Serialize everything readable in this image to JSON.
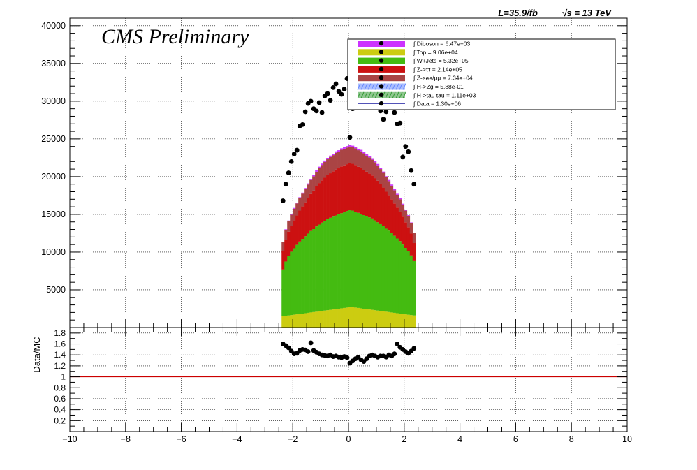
{
  "header": {
    "lumi": "L=35.9/fb",
    "energy": "√s = 13 TeV",
    "experiment": "CMS Preliminary"
  },
  "colors": {
    "diboson": "#cc33ff",
    "top": "#cccc11",
    "wjets": "#44bb11",
    "ztautau": "#cc1111",
    "zll": "#aa4444",
    "hzg": "#6688ff",
    "htautau": "#339933",
    "data": "#000000",
    "ratio_line": "#cc0000"
  },
  "chart_data": [
    {
      "type": "bar",
      "stacked": true,
      "xlim": [
        -10,
        10
      ],
      "ylim": [
        0,
        41000
      ],
      "yticks": [
        5000,
        10000,
        15000,
        20000,
        25000,
        30000,
        35000,
        40000
      ],
      "ytick_labels": [
        "5000",
        "10000",
        "15000",
        "20000",
        "25000",
        "30000",
        "35000",
        "40000"
      ],
      "grid": true,
      "legend_position": "top-right",
      "legend": [
        {
          "label": "∫ Diboson = 6.47e+03",
          "style": "fill",
          "color_key": "diboson"
        },
        {
          "label": "∫ Top = 9.06e+04",
          "style": "fill",
          "color_key": "top"
        },
        {
          "label": "∫ W+Jets = 5.32e+05",
          "style": "fill",
          "color_key": "wjets"
        },
        {
          "label": "∫ Z->ττ = 2.14e+05",
          "style": "fill",
          "color_key": "ztautau"
        },
        {
          "label": "∫ Z->ee/μμ = 7.34e+04",
          "style": "fill",
          "color_key": "zll"
        },
        {
          "label": "∫ H->Zg = 5.88e-01",
          "style": "hatch",
          "color_key": "hzg"
        },
        {
          "label": "∫ H->tau tau = 1.11e+03",
          "style": "hatch",
          "color_key": "htautau"
        },
        {
          "label": "∫ Data = 1.30e+06",
          "style": "line",
          "color_key": "data"
        }
      ],
      "bins": {
        "x_low": -2.4,
        "x_high": 2.4,
        "n": 48,
        "top": [
          1500,
          1550,
          1600,
          1650,
          1700,
          1750,
          1800,
          1850,
          1900,
          1950,
          2000,
          2050,
          2100,
          2150,
          2200,
          2250,
          2300,
          2350,
          2400,
          2450,
          2500,
          2550,
          2600,
          2650,
          2700,
          2700,
          2650,
          2600,
          2550,
          2500,
          2450,
          2400,
          2350,
          2300,
          2250,
          2200,
          2150,
          2100,
          2050,
          2000,
          1950,
          1900,
          1850,
          1800,
          1750,
          1700,
          1650,
          1600
        ],
        "wjets": [
          6200,
          7200,
          7900,
          8400,
          8800,
          9200,
          9600,
          9900,
          10200,
          10500,
          10800,
          11000,
          11300,
          11500,
          11700,
          11900,
          12100,
          12200,
          12300,
          12400,
          12500,
          12600,
          12700,
          12800,
          12900,
          12800,
          12700,
          12600,
          12500,
          12400,
          12300,
          12200,
          12100,
          11900,
          11700,
          11500,
          11300,
          11000,
          10800,
          10500,
          10200,
          9900,
          9600,
          9200,
          8800,
          8400,
          7900,
          7200
        ],
        "ztautau": [
          2400,
          2900,
          3200,
          3400,
          3700,
          3900,
          4100,
          4300,
          4500,
          4700,
          4900,
          5100,
          5300,
          5500,
          5600,
          5700,
          5800,
          5900,
          6000,
          6100,
          6100,
          6200,
          6200,
          6200,
          6200,
          6200,
          6200,
          6100,
          6100,
          6000,
          5900,
          5800,
          5700,
          5600,
          5500,
          5300,
          5100,
          4900,
          4700,
          4500,
          4300,
          4100,
          3900,
          3700,
          3400,
          3200,
          2900,
          2400
        ],
        "zll": [
          1200,
          1300,
          1400,
          1500,
          1550,
          1600,
          1650,
          1700,
          1750,
          1800,
          1850,
          1900,
          1950,
          2000,
          2050,
          2100,
          2100,
          2150,
          2150,
          2200,
          2200,
          2200,
          2200,
          2200,
          2200,
          2200,
          2200,
          2200,
          2200,
          2200,
          2150,
          2150,
          2100,
          2100,
          2050,
          2000,
          1950,
          1900,
          1850,
          1800,
          1750,
          1700,
          1650,
          1600,
          1550,
          1500,
          1400,
          1300
        ],
        "diboson": [
          60,
          70,
          80,
          90,
          100,
          110,
          120,
          130,
          140,
          150,
          160,
          160,
          170,
          170,
          180,
          180,
          190,
          190,
          190,
          200,
          200,
          200,
          200,
          200,
          200,
          200,
          200,
          200,
          200,
          200,
          190,
          190,
          190,
          180,
          180,
          170,
          170,
          160,
          160,
          150,
          140,
          130,
          120,
          110,
          100,
          90,
          80,
          70
        ]
      },
      "data_points": {
        "x": [
          -2.35,
          -2.25,
          -2.15,
          -2.05,
          -1.95,
          -1.85,
          -1.75,
          -1.65,
          -1.55,
          -1.45,
          -1.35,
          -1.25,
          -1.15,
          -1.05,
          -0.95,
          -0.85,
          -0.75,
          -0.65,
          -0.55,
          -0.45,
          -0.35,
          -0.25,
          -0.15,
          -0.05,
          0.05,
          0.15,
          0.25,
          0.35,
          0.45,
          0.55,
          0.65,
          0.75,
          0.85,
          0.95,
          1.05,
          1.15,
          1.25,
          1.35,
          1.45,
          1.55,
          1.65,
          1.75,
          1.85,
          1.95,
          2.05,
          2.15,
          2.25,
          2.35
        ],
        "y": [
          16800,
          19000,
          20500,
          22000,
          23000,
          23500,
          26700,
          26900,
          28600,
          29700,
          30000,
          29000,
          28700,
          29800,
          28500,
          30700,
          31000,
          30100,
          31800,
          32300,
          31300,
          30900,
          31600,
          33000,
          25200,
          29000,
          32600,
          31800,
          30200,
          30700,
          32800,
          29700,
          32000,
          30500,
          29700,
          28700,
          27600,
          28600,
          29200,
          30600,
          28500,
          27000,
          27100,
          22600,
          24000,
          23300,
          20800,
          19000
        ]
      }
    },
    {
      "type": "scatter",
      "ylabel": "Data/MC",
      "xlim": [
        -10,
        10
      ],
      "ylim": [
        0,
        1.9
      ],
      "xticks": [
        -10,
        -8,
        -6,
        -4,
        -2,
        0,
        2,
        4,
        6,
        8,
        10
      ],
      "xtick_labels": [
        "−10",
        "−8",
        "−6",
        "−4",
        "−2",
        "0",
        "2",
        "4",
        "6",
        "8",
        "10"
      ],
      "yticks": [
        0.2,
        0.4,
        0.6,
        0.8,
        1,
        1.2,
        1.4,
        1.6,
        1.8
      ],
      "ytick_labels": [
        "0.2",
        "0.4",
        "0.6",
        "0.8",
        "1",
        "1.2",
        "1.4",
        "1.6",
        "1.8"
      ],
      "reference_line": 1,
      "grid": true,
      "ratio": [
        1.6,
        1.57,
        1.53,
        1.47,
        1.42,
        1.43,
        1.48,
        1.5,
        1.49,
        1.46,
        1.62,
        1.48,
        1.45,
        1.42,
        1.4,
        1.39,
        1.38,
        1.4,
        1.37,
        1.38,
        1.36,
        1.35,
        1.37,
        1.35,
        1.25,
        1.29,
        1.33,
        1.36,
        1.31,
        1.28,
        1.33,
        1.38,
        1.4,
        1.38,
        1.36,
        1.38,
        1.38,
        1.36,
        1.4,
        1.38,
        1.42,
        1.6,
        1.54,
        1.5,
        1.46,
        1.43,
        1.47,
        1.52
      ]
    }
  ]
}
